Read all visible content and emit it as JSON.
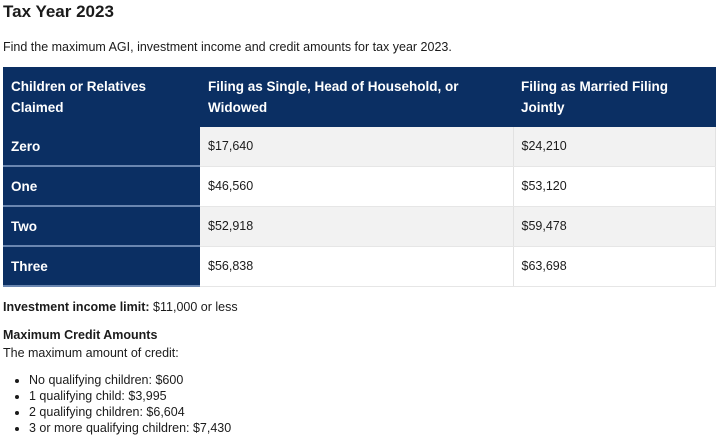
{
  "title": "Tax Year 2023",
  "intro": "Find the maximum AGI, investment income and credit amounts for tax year 2023.",
  "table": {
    "headers": [
      "Children or Relatives Claimed",
      "Filing as Single, Head of Household, or Widowed",
      "Filing as Married Filing Jointly"
    ],
    "rows": [
      [
        "Zero",
        "$17,640",
        "$24,210"
      ],
      [
        "One",
        "$46,560",
        "$53,120"
      ],
      [
        "Two",
        "$52,918",
        "$59,478"
      ],
      [
        "Three",
        "$56,838",
        "$63,698"
      ]
    ]
  },
  "investment": {
    "label": "Investment income limit:",
    "value": "$11,000 or less"
  },
  "max_credit": {
    "heading": "Maximum Credit Amounts",
    "subtitle": "The maximum amount of credit:",
    "items": [
      "No qualifying children: $600",
      "1 qualifying child: $3,995",
      "2 qualifying children: $6,604",
      "3 or more qualifying children: $7,430"
    ]
  },
  "colors": {
    "header_bg": "#0b2f63",
    "stripe": "#f2f2f2"
  }
}
